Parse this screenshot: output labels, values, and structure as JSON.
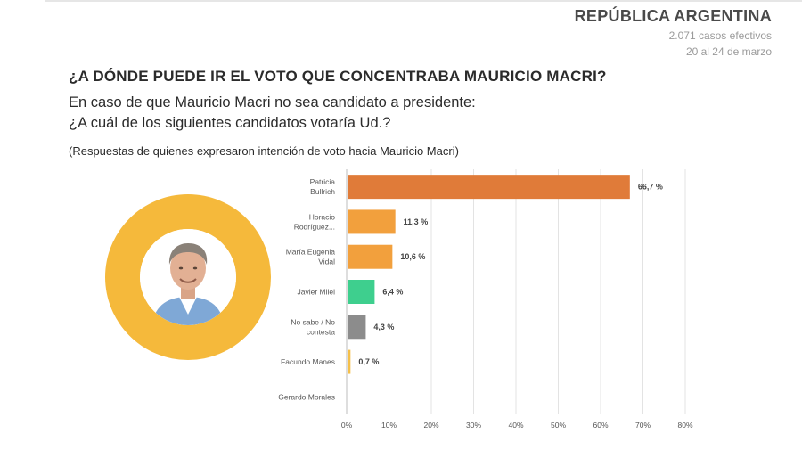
{
  "header": {
    "country": "REPÚBLICA ARGENTINA",
    "cases": "2.071 casos efectivos",
    "dates": "20 al 24 de marzo"
  },
  "title": "¿A DÓNDE PUEDE IR EL VOTO QUE CONCENTRABA MAURICIO MACRI?",
  "question_line1": "En caso de que Mauricio Macri no sea candidato a presidente:",
  "question_line2": "¿A cuál de los siguientes candidatos votaría Ud.?",
  "note": "(Respuestas de quienes expresaron intención de voto hacia Mauricio Macri)",
  "colors": {
    "ring": "#f5b93b",
    "bullrich": "#e07b39",
    "orange": "#f2a03d",
    "milei": "#3ecf8e",
    "ns": "#8c8c8c",
    "manes": "#f5c04a"
  },
  "chart_data": {
    "type": "bar",
    "orientation": "horizontal",
    "categories": [
      [
        "Patricia",
        "Bullrich"
      ],
      [
        "Horacio",
        "Rodríguez..."
      ],
      [
        "María Eugenia",
        "Vidal"
      ],
      [
        "Javier Milei"
      ],
      [
        "No sabe / No",
        "contesta"
      ],
      [
        "Facundo Manes"
      ],
      [
        "Gerardo Morales"
      ]
    ],
    "values": [
      66.7,
      11.3,
      10.6,
      6.4,
      4.3,
      0.7,
      0
    ],
    "value_labels": [
      "66,7 %",
      "11,3 %",
      "10,6 %",
      "6,4 %",
      "4,3 %",
      "0,7 %",
      ""
    ],
    "bar_colors": [
      "#e07b39",
      "#f2a03d",
      "#f2a03d",
      "#3ecf8e",
      "#8c8c8c",
      "#f5c04a",
      "#f5c04a"
    ],
    "x_ticks": [
      "0%",
      "10%",
      "20%",
      "30%",
      "40%",
      "50%",
      "60%",
      "70%",
      "80%"
    ],
    "xlim": [
      0,
      80
    ],
    "grid": true
  }
}
